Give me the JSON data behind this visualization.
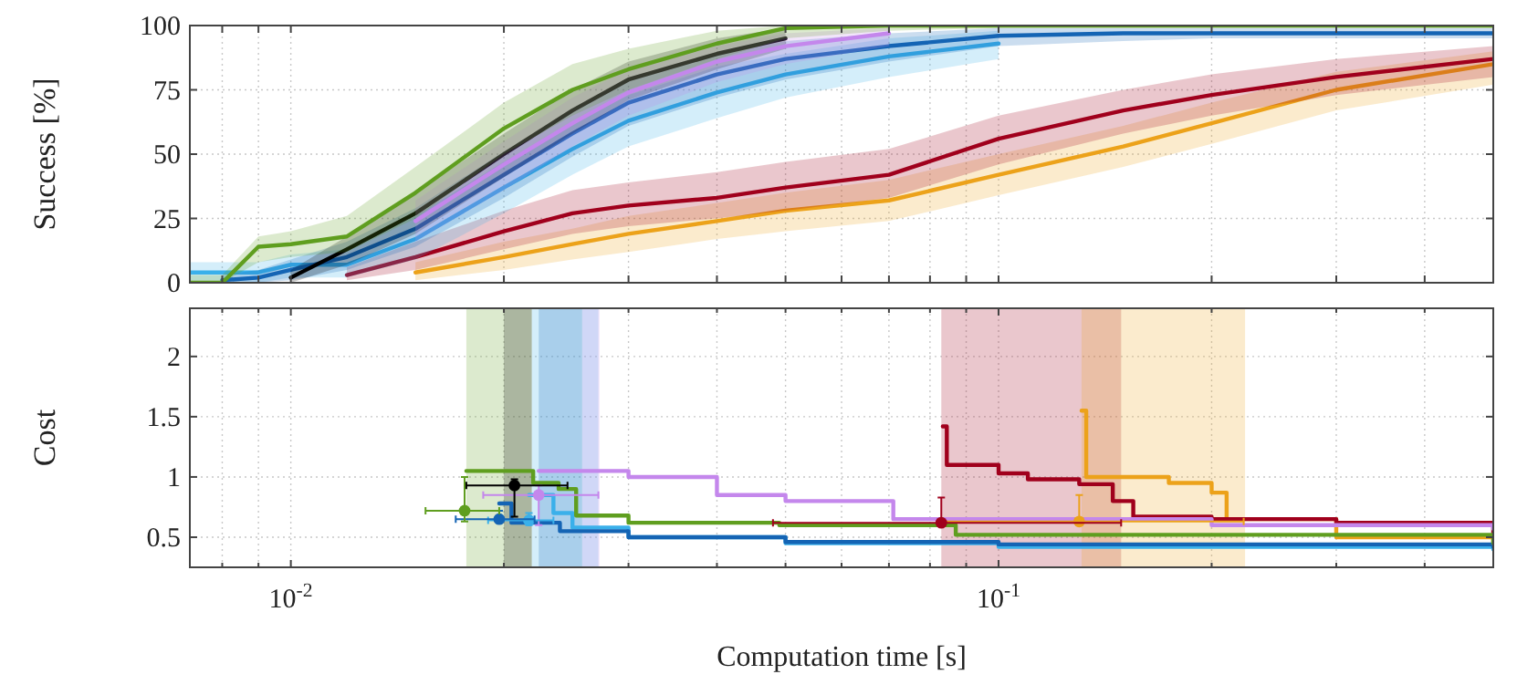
{
  "chart_data": [
    {
      "type": "line",
      "ylabel": "Success [%]",
      "xlim": [
        0.0072,
        0.5
      ],
      "ylim": [
        0,
        100
      ],
      "log": "x",
      "grid": true,
      "tick_labels": "y",
      "xticks": [
        0.008,
        0.009,
        0.01,
        0.02,
        0.03,
        0.04,
        0.05,
        0.06,
        0.07,
        0.08,
        0.09,
        0.1,
        0.2,
        0.3,
        0.4,
        0.5
      ],
      "yticks": [
        0,
        25,
        50,
        75,
        100
      ],
      "x": [
        0.0072,
        0.008,
        0.009,
        0.01,
        0.012,
        0.015,
        0.02,
        0.025,
        0.03,
        0.04,
        0.05,
        0.07,
        0.1,
        0.15,
        0.2,
        0.3,
        0.5
      ],
      "series": [
        {
          "color": "#eca21a",
          "values": [
            null,
            null,
            null,
            null,
            null,
            4,
            10,
            15,
            19,
            24,
            28,
            32,
            42,
            53,
            62,
            75,
            85
          ],
          "lower": [
            null,
            null,
            null,
            null,
            null,
            1,
            5,
            9,
            12,
            17,
            20,
            24,
            34,
            45,
            54,
            67,
            77
          ],
          "upper": [
            null,
            null,
            null,
            null,
            null,
            8,
            16,
            21,
            26,
            31,
            35,
            40,
            50,
            61,
            70,
            82,
            90
          ]
        },
        {
          "color": "#a0001c",
          "values": [
            null,
            null,
            null,
            null,
            3,
            10,
            20,
            27,
            30,
            33,
            37,
            42,
            56,
            67,
            73,
            80,
            87
          ],
          "lower": [
            null,
            null,
            null,
            null,
            1,
            5,
            13,
            19,
            22,
            25,
            28,
            33,
            46,
            58,
            65,
            73,
            80
          ],
          "upper": [
            null,
            null,
            null,
            null,
            6,
            16,
            28,
            36,
            39,
            43,
            47,
            52,
            65,
            75,
            81,
            87,
            92
          ]
        },
        {
          "color": "#3ab0ea",
          "values": [
            4,
            4,
            4,
            7,
            7,
            17,
            37,
            52,
            63,
            74,
            81,
            88,
            93,
            null,
            null,
            null,
            null
          ],
          "lower": [
            0,
            0,
            0,
            2,
            2,
            9,
            27,
            42,
            53,
            64,
            72,
            80,
            87,
            null,
            null,
            null,
            null
          ],
          "upper": [
            8,
            8,
            8,
            11,
            13,
            26,
            47,
            62,
            73,
            84,
            89,
            95,
            98,
            null,
            null,
            null,
            null
          ]
        },
        {
          "color": "#1464b4",
          "values": [
            null,
            1,
            2,
            5,
            10,
            21,
            42,
            58,
            70,
            81,
            87,
            92,
            96,
            97,
            97,
            97,
            97
          ],
          "lower": [
            null,
            0,
            0,
            1,
            5,
            14,
            33,
            49,
            61,
            72,
            79,
            86,
            92,
            94,
            95,
            95,
            95
          ],
          "upper": [
            null,
            3,
            5,
            9,
            16,
            29,
            51,
            67,
            79,
            89,
            94,
            97,
            99,
            99,
            99,
            99,
            99
          ]
        },
        {
          "color": "#000000",
          "values": [
            null,
            null,
            null,
            2,
            13,
            27,
            50,
            67,
            79,
            89,
            95,
            null,
            null,
            null,
            null,
            null,
            null
          ],
          "lower": [
            null,
            null,
            null,
            0,
            7,
            19,
            41,
            58,
            71,
            83,
            91,
            null,
            null,
            null,
            null,
            null,
            null
          ],
          "upper": [
            null,
            null,
            null,
            5,
            18,
            35,
            58,
            75,
            86,
            95,
            99,
            null,
            null,
            null,
            null,
            null,
            null
          ]
        },
        {
          "color": "#c487ec",
          "values": [
            null,
            null,
            null,
            null,
            null,
            24,
            46,
            62,
            74,
            86,
            92,
            97,
            null,
            null,
            null,
            null,
            null
          ],
          "lower": [
            null,
            null,
            null,
            null,
            null,
            16,
            36,
            53,
            65,
            78,
            85,
            92,
            null,
            null,
            null,
            null,
            null
          ],
          "upper": [
            null,
            null,
            null,
            null,
            null,
            32,
            55,
            72,
            83,
            92,
            97,
            99,
            null,
            null,
            null,
            null,
            null
          ]
        },
        {
          "color": "#5f9e1f",
          "values": [
            0,
            0,
            14,
            15,
            18,
            35,
            60,
            75,
            83,
            93,
            99,
            100,
            100,
            100,
            100,
            100,
            100
          ],
          "lower": [
            0,
            0,
            8,
            10,
            12,
            25,
            50,
            65,
            75,
            87,
            95,
            98,
            99,
            99,
            99,
            99,
            99
          ],
          "upper": [
            3,
            3,
            18,
            20,
            26,
            45,
            70,
            85,
            91,
            98,
            100,
            100,
            100,
            100,
            100,
            100,
            100
          ]
        }
      ]
    },
    {
      "type": "step",
      "ylabel": "Cost",
      "xlabel": "Computation time [s]",
      "xlim": [
        0.0072,
        0.5
      ],
      "ylim": [
        0.25,
        2.4
      ],
      "log": "x",
      "grid": true,
      "xticks": [
        {
          "value": 0.008,
          "label": null
        },
        {
          "value": 0.009,
          "label": null
        },
        {
          "value": 0.01,
          "label": "10$^{-2}$"
        },
        {
          "value": 0.02,
          "label": null
        },
        {
          "value": 0.03,
          "label": null
        },
        {
          "value": 0.04,
          "label": null
        },
        {
          "value": 0.05,
          "label": null
        },
        {
          "value": 0.06,
          "label": null
        },
        {
          "value": 0.07,
          "label": null
        },
        {
          "value": 0.08,
          "label": null
        },
        {
          "value": 0.09,
          "label": null
        },
        {
          "value": 0.1,
          "label": "10$^{-1}$"
        },
        {
          "value": 0.2,
          "label": null
        },
        {
          "value": 0.3,
          "label": null
        },
        {
          "value": 0.4,
          "label": null
        },
        {
          "value": 0.5,
          "label": null
        }
      ],
      "yticks": [
        0.5,
        1,
        1.5,
        2
      ],
      "bands": [
        {
          "axis": "x",
          "from": 0.0177,
          "to": 0.0219,
          "color": "#5f9e1f"
        },
        {
          "axis": "x",
          "from": 0.02,
          "to": 0.0219,
          "color": "#000000"
        },
        {
          "axis": "x",
          "from": 0.0219,
          "to": 0.0272,
          "color": "#3ab0ea"
        },
        {
          "axis": "x",
          "from": 0.0224,
          "to": 0.0258,
          "color": "#1464b4"
        },
        {
          "axis": "x",
          "from": 0.0258,
          "to": 0.0273,
          "color": "#c487ec"
        },
        {
          "axis": "x",
          "from": 0.083,
          "to": 0.149,
          "color": "#a0001c"
        },
        {
          "axis": "x",
          "from": 0.131,
          "to": 0.223,
          "color": "#eca21a"
        }
      ],
      "series": [
        {
          "color": "#eca21a",
          "x": [
            0.131,
            0.133,
            0.174,
            0.2,
            0.21,
            0.3,
            0.5
          ],
          "values": [
            1.55,
            1.0,
            0.95,
            0.87,
            0.65,
            0.5,
            0.45
          ]
        },
        {
          "color": "#a0001c",
          "x": [
            0.0834,
            0.0845,
            0.1,
            0.11,
            0.13,
            0.145,
            0.155,
            0.2,
            0.3,
            0.5
          ],
          "values": [
            1.42,
            1.1,
            1.03,
            0.98,
            0.94,
            0.8,
            0.67,
            0.65,
            0.62,
            0.53
          ]
        },
        {
          "color": "#c487ec",
          "x": [
            0.0224,
            0.03,
            0.04,
            0.05,
            0.071,
            0.2,
            0.5
          ],
          "values": [
            1.05,
            1.0,
            0.85,
            0.8,
            0.65,
            0.6,
            0.57
          ]
        },
        {
          "color": "#3ab0ea",
          "x": [
            0.0217,
            0.0235,
            0.025,
            0.03,
            0.05,
            0.1,
            0.5
          ],
          "values": [
            0.85,
            0.7,
            0.58,
            0.5,
            0.45,
            0.42,
            0.4
          ]
        },
        {
          "color": "#1464b4",
          "x": [
            0.0197,
            0.0205,
            0.024,
            0.03,
            0.05,
            0.1,
            0.5
          ],
          "values": [
            0.78,
            0.62,
            0.55,
            0.5,
            0.46,
            0.44,
            0.42
          ]
        },
        {
          "color": "#5f9e1f",
          "x": [
            0.0177,
            0.022,
            0.0239,
            0.0253,
            0.03,
            0.049,
            0.087,
            0.5
          ],
          "values": [
            1.05,
            0.95,
            0.9,
            0.68,
            0.62,
            0.6,
            0.52,
            0.45
          ]
        },
        {
          "type": "scatter",
          "marker": "circle",
          "color": "#eca21a",
          "x": [
            0.13
          ],
          "values": [
            0.63
          ],
          "errors": [
            [
              0.63,
              0.85
            ]
          ],
          "xerrors": [
            [
              0.083,
              0.222
            ]
          ]
        },
        {
          "type": "scatter",
          "marker": "circle",
          "color": "#a0001c",
          "x": [
            0.083
          ],
          "values": [
            0.62
          ],
          "errors": [
            [
              0.62,
              0.83
            ]
          ],
          "xerrors": [
            [
              0.048,
              0.149
            ]
          ]
        },
        {
          "type": "scatter",
          "marker": "circle",
          "color": "#c487ec",
          "x": [
            0.0224
          ],
          "values": [
            0.85
          ],
          "errors": [
            [
              0.6,
              0.93
            ]
          ],
          "xerrors": [
            [
              0.0187,
              0.0272
            ]
          ]
        },
        {
          "type": "scatter",
          "marker": "circle",
          "color": "#3ab0ea",
          "x": [
            0.0217
          ],
          "values": [
            0.64
          ],
          "errors": [
            [
              0.6,
              0.7
            ]
          ],
          "xerrors": [
            [
              0.019,
              0.0235
            ]
          ]
        },
        {
          "type": "scatter",
          "marker": "circle",
          "color": "#1464b4",
          "x": [
            0.0197
          ],
          "values": [
            0.65
          ],
          "errors": [
            [
              0.62,
              0.72
            ]
          ],
          "xerrors": [
            [
              0.0171,
              0.0221
            ]
          ]
        },
        {
          "type": "scatter",
          "marker": "circle",
          "color": "#5f9e1f",
          "x": [
            0.0176
          ],
          "values": [
            0.72
          ],
          "errors": [
            [
              0.63,
              1.0
            ]
          ],
          "xerrors": [
            [
              0.0155,
              0.0197
            ]
          ]
        },
        {
          "type": "scatter",
          "marker": "circle",
          "color": "#000000",
          "x": [
            0.0207
          ],
          "values": [
            0.93
          ],
          "errors": [
            [
              0.67,
              0.98
            ]
          ],
          "xerrors": [
            [
              0.0177,
              0.0246
            ]
          ]
        }
      ]
    }
  ]
}
